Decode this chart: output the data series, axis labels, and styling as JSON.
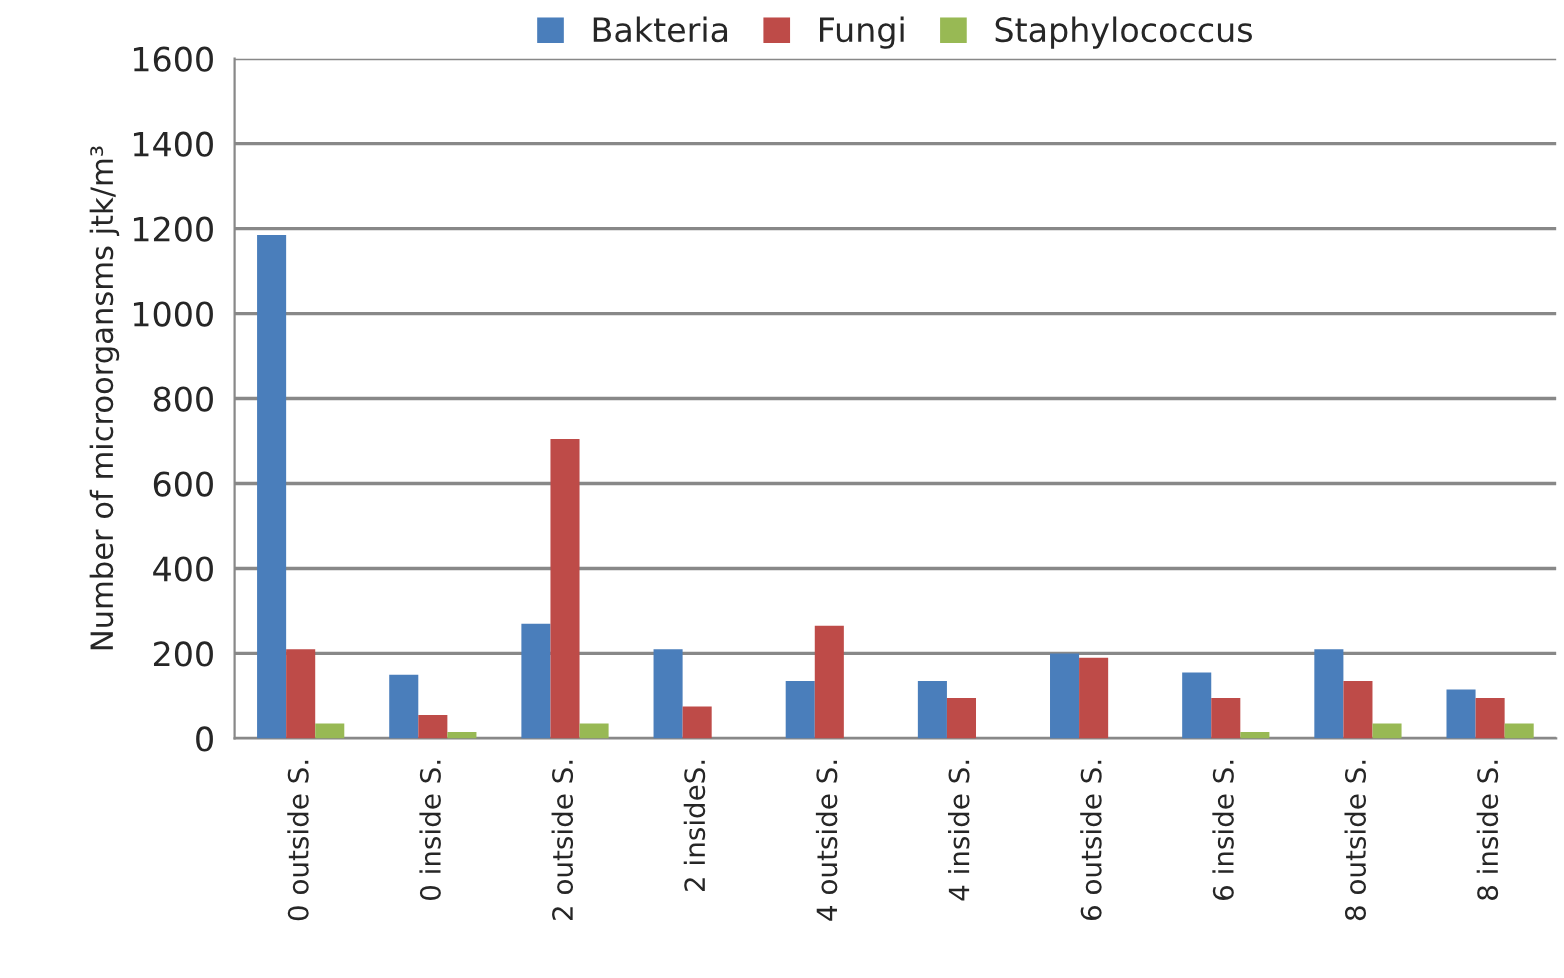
{
  "chart_data": {
    "type": "bar",
    "ylabel": "Number of microorgansms jtk/m³",
    "categories": [
      "0 outside S.",
      "0 inside S.",
      "2 outside S.",
      "2 insideS.",
      "4 outside S.",
      "4 inside S.",
      "6 outside S.",
      "6 inside S.",
      "8 outside S.",
      "8 inside S."
    ],
    "series": [
      {
        "name": "Bakteria",
        "color": "#4a7ebb",
        "values": [
          1185,
          150,
          270,
          210,
          135,
          135,
          200,
          155,
          210,
          115
        ]
      },
      {
        "name": "Fungi",
        "color": "#be4b48",
        "values": [
          210,
          55,
          705,
          75,
          265,
          95,
          190,
          95,
          135,
          95
        ]
      },
      {
        "name": "Staphylococcus",
        "color": "#98b954",
        "values": [
          35,
          15,
          35,
          null,
          null,
          null,
          null,
          15,
          35,
          35
        ]
      }
    ],
    "ylim": [
      0,
      1600
    ],
    "yticks": [
      0,
      200,
      400,
      600,
      800,
      1000,
      1200,
      1400,
      1600
    ],
    "grid": "y",
    "legend": "top"
  }
}
